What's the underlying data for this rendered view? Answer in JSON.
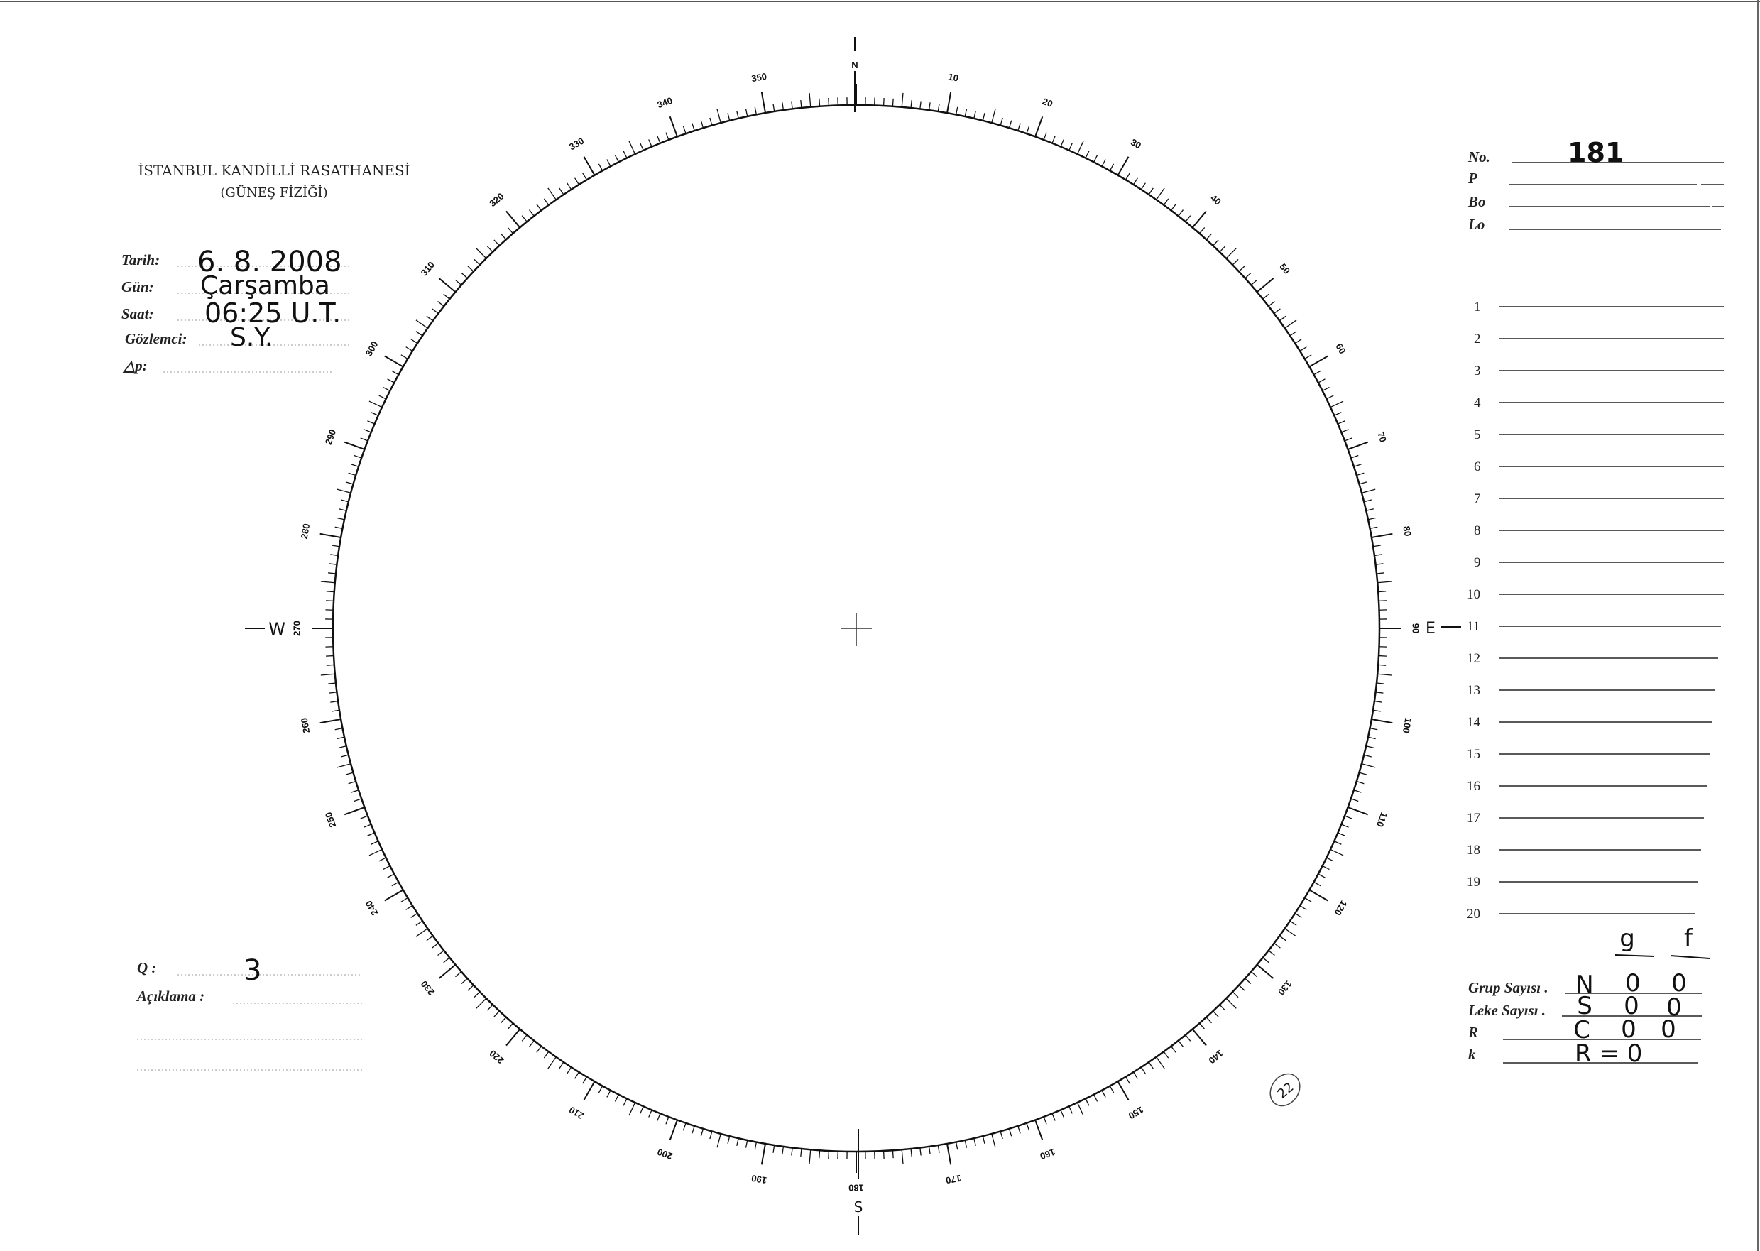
{
  "header": {
    "institution": "İSTANBUL KANDİLLİ RASATHANESİ",
    "department": "(GÜNEŞ FİZİĞİ)"
  },
  "observation": {
    "date_label": "Tarih:",
    "date_value": "6. 8. 2008",
    "day_label": "Gün:",
    "day_value": "Çarşamba",
    "time_label": "Saat:",
    "time_value": "06:25  U.T.",
    "observer_label": "Gözlemci:",
    "observer_value": "S.Y.",
    "delta_p_label": "△p:",
    "delta_p_value": ""
  },
  "quality": {
    "q_label": "Q :",
    "q_value": "3",
    "notes_label": "Açıklama :"
  },
  "disk": {
    "north": "N",
    "east": "E",
    "south": "S",
    "west": "W",
    "degree_step": 1,
    "label_step": 10
  },
  "right_panel": {
    "no_label": "No.",
    "no_value": "181",
    "p_label": "P",
    "bo_label": "Bo",
    "lo_label": "Lo",
    "rows": [
      "1",
      "2",
      "3",
      "4",
      "5",
      "6",
      "7",
      "8",
      "9",
      "10",
      "11",
      "12",
      "13",
      "14",
      "15",
      "16",
      "17",
      "18",
      "19",
      "20"
    ]
  },
  "counts": {
    "col_g": "g",
    "col_f": "f",
    "group_label": "Grup Sayısı .",
    "spot_label": "Leke Sayısı .",
    "r_label": "R",
    "k_label": "k",
    "group_values": [
      "N",
      "0",
      "0"
    ],
    "spot_values": [
      "S",
      "0",
      "0"
    ],
    "r_values": [
      "C",
      "0",
      "0"
    ],
    "k_value": "R = 0"
  },
  "stamp": {
    "circled_number": "22"
  }
}
